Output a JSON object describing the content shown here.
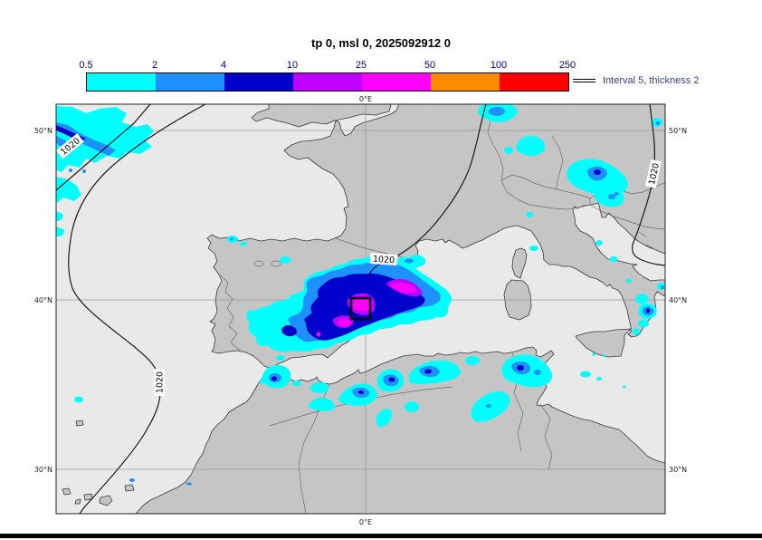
{
  "title": "tp 0, msl 0, 2025092912 0",
  "colorbar": {
    "tick_labels": [
      "0.5",
      "2",
      "4",
      "10",
      "25",
      "50",
      "100",
      "250"
    ],
    "segments": [
      {
        "from": "0.5",
        "to": "2",
        "color": "#00FFFF"
      },
      {
        "from": "2",
        "to": "4",
        "color": "#1E90FF"
      },
      {
        "from": "4",
        "to": "10",
        "color": "#0000CD"
      },
      {
        "from": "10",
        "to": "25",
        "color": "#BF00FF"
      },
      {
        "from": "25",
        "to": "50",
        "color": "#FF00FF"
      },
      {
        "from": "50",
        "to": "100",
        "color": "#FF8C00"
      },
      {
        "from": "100",
        "to": "250",
        "color": "#FF0000"
      }
    ],
    "legend_text": "Interval 5, thickness 2"
  },
  "map": {
    "contour_label": "1020",
    "lat_labels": [
      "50°N",
      "40°N",
      "30°N"
    ],
    "lon_label_top": "0°E",
    "lon_label_bottom": "0°E"
  },
  "colors": {
    "sea": "#E9E9E9",
    "land": "#C5C5C5",
    "coast": "#3a3a3a",
    "border": "#6e6e6e",
    "grid": "#999999",
    "contour": "#1a1a1a",
    "cyan": "#00FFFF",
    "blue": "#1E90FF",
    "dark_blue": "#0000CD",
    "purple": "#BF00FF",
    "magenta": "#FF00FF",
    "orange": "#FF8C00",
    "red": "#FF0000",
    "tick_label": "#00008B",
    "legend_text": "#333B8F"
  }
}
